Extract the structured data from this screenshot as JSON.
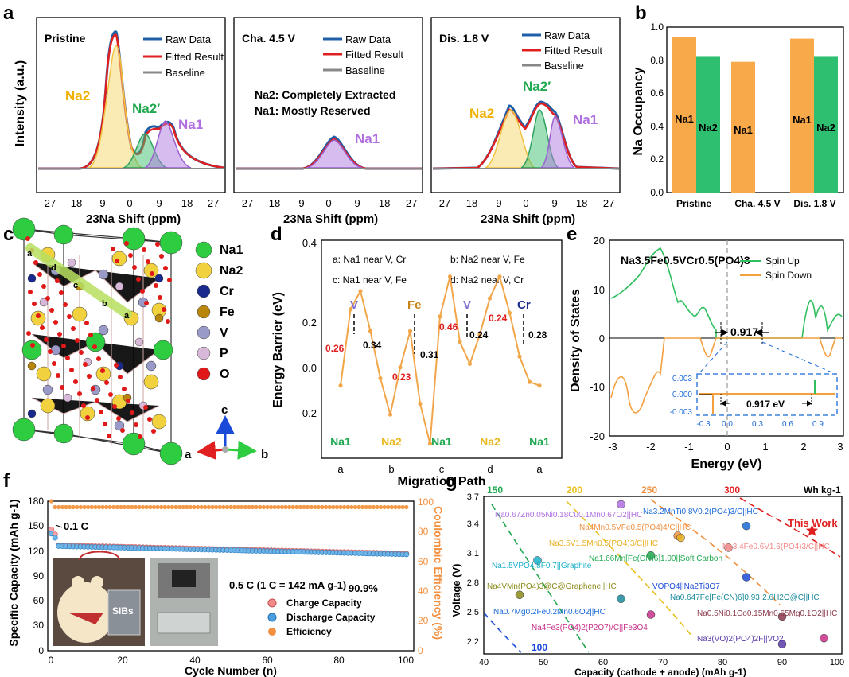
{
  "panel_labels": [
    "a",
    "b",
    "c",
    "d",
    "e",
    "f",
    "g"
  ],
  "chart_data": [
    {
      "panel": "a",
      "type": "line",
      "ylabel": "Intensity (a.u.)",
      "xlabel": "23Na Shift (ppm)",
      "xticks": [
        "27",
        "18",
        "9",
        "0",
        "-9",
        "-18",
        "-27"
      ],
      "legend": [
        "Raw Data",
        "Fitted Result",
        "Baseline"
      ],
      "subpanels": [
        {
          "title": "Pristine",
          "annotations": [
            "Na2",
            "Na2′",
            "Na1"
          ]
        },
        {
          "title": "Cha. 4.5 V",
          "annotations": [
            "Na2: Completely Extracted",
            "Na1: Mostly Reserved",
            "Na1"
          ]
        },
        {
          "title": "Dis. 1.8 V",
          "annotations": [
            "Na2",
            "Na2′",
            "Na1"
          ]
        }
      ]
    },
    {
      "panel": "b",
      "type": "bar",
      "ylabel": "Na Occupancy",
      "ylim": [
        0,
        1.0
      ],
      "yticks": [
        "0.0",
        "0.2",
        "0.4",
        "0.6",
        "0.8",
        "1.0"
      ],
      "categories": [
        "Pristine",
        "Cha. 4.5 V",
        "Dis. 1.8 V"
      ],
      "series": [
        {
          "name": "Na1",
          "values": [
            0.94,
            0.79,
            0.93
          ],
          "color": "#f8a94a"
        },
        {
          "name": "Na2",
          "values": [
            0.82,
            0,
            0.82
          ],
          "color": "#2fbf71"
        }
      ]
    },
    {
      "panel": "c",
      "type": "legend",
      "legend": [
        {
          "label": "Na1",
          "color": "#2ecc40"
        },
        {
          "label": "Na2",
          "color": "#f2d13e"
        },
        {
          "label": "Cr",
          "color": "#1a2a8c"
        },
        {
          "label": "Fe",
          "color": "#b8860b"
        },
        {
          "label": "V",
          "color": "#9a9ac8"
        },
        {
          "label": "P",
          "color": "#d8b8d8"
        },
        {
          "label": "O",
          "color": "#e01818"
        }
      ],
      "path_labels": [
        "a",
        "d",
        "c",
        "b",
        "a"
      ],
      "axes": [
        "a",
        "b",
        "c"
      ]
    },
    {
      "panel": "d",
      "type": "line",
      "ylabel": "Energy Barrier (eV)",
      "xlabel": "Migration Path",
      "ylim": [
        -0.2,
        0.4
      ],
      "yticks": [
        "-0.2",
        "0.0",
        "0.2",
        "0.4"
      ],
      "xticks": [
        "a",
        "b",
        "c",
        "d",
        "a"
      ],
      "legend": [
        "a: Na1 near V, Cr",
        "b: Na2 near V, Fe",
        "c: Na1 near V, Fe",
        "d: Na2 near V, Cr"
      ],
      "sites": [
        "Na1",
        "Na2",
        "Na1",
        "Na2",
        "Na1"
      ],
      "peaks": [
        "V",
        "Fe",
        "V",
        "Cr"
      ],
      "barriers": [
        "0.26",
        "0.34",
        "0.23",
        "0.31",
        "0.46",
        "0.24",
        "0.24",
        "0.28"
      ],
      "x": [
        0,
        0.5,
        1,
        1.5,
        2,
        2.5,
        3,
        3.5,
        4,
        4.5,
        5,
        5.5,
        6,
        6.5,
        7,
        7.5,
        8,
        8.5,
        9,
        9.5,
        10
      ],
      "y": [
        0.0,
        0.21,
        0.26,
        0.15,
        0.02,
        -0.08,
        0.05,
        0.15,
        -0.05,
        -0.16,
        0.19,
        0.3,
        0.12,
        0.06,
        0.14,
        0.24,
        0.3,
        0.2,
        0.08,
        0.01,
        0.0
      ]
    },
    {
      "panel": "e",
      "type": "line",
      "title": "Na3.5Fe0.5VCr0.5(PO4)3",
      "ylabel": "Density of States",
      "xlabel": "Energy (eV)",
      "ylim": [
        -20,
        20
      ],
      "xlim": [
        -3,
        3
      ],
      "yticks": [
        "-20",
        "-10",
        "0",
        "10",
        "20"
      ],
      "xticks": [
        "-3",
        "-2",
        "-1",
        "0",
        "1",
        "2",
        "3"
      ],
      "legend": [
        "Spin Up",
        "Spin Down"
      ],
      "gap": "0.917",
      "inset": {
        "yticks": [
          "0.003",
          "0.000",
          "-0.003"
        ],
        "xticks": [
          "-0.3",
          "0.0",
          "0.3",
          "0.6",
          "0.9"
        ],
        "gap": "0.917 eV"
      }
    },
    {
      "panel": "f",
      "type": "scatter",
      "ylabel": "Specific Capacity (mAh g-1)",
      "y2label": "Coulombic Efficiency (%)",
      "xlabel": "Cycle Number (n)",
      "xlim": [
        0,
        100
      ],
      "ylim": [
        0,
        180
      ],
      "xticks": [
        "0",
        "20",
        "40",
        "60",
        "80",
        "100"
      ],
      "yticks": [
        "0",
        "30",
        "60",
        "90",
        "120",
        "150",
        "180"
      ],
      "y2ticks": [
        "0",
        "20",
        "40",
        "60",
        "80",
        "100"
      ],
      "annotations": [
        "0.1 C",
        "0.5 C (1 C = 142 mA g-1)",
        "90.9%",
        "SIBs"
      ],
      "legend": [
        "Charge Capacity",
        "Discharge Capacity",
        "Efficiency"
      ],
      "series": [
        {
          "name": "Charge Capacity",
          "start": [
            146,
            140
          ],
          "level_start": 127,
          "level_end": 117
        },
        {
          "name": "Discharge Capacity",
          "start": [
            141,
            136
          ],
          "level_start": 126,
          "level_end": 116
        },
        {
          "name": "Efficiency",
          "level": 96,
          "first": 100
        }
      ]
    },
    {
      "panel": "g",
      "type": "scatter",
      "ylabel": "Voltage (V)",
      "xlabel": "Capacity (cathode + anode) (mAh g-1)",
      "xlim": [
        40,
        100
      ],
      "ylim": [
        2.1,
        3.7
      ],
      "xticks": [
        "40",
        "50",
        "60",
        "70",
        "80",
        "90",
        "100"
      ],
      "yticks": [
        "2.2",
        "2.5",
        "2.8",
        "3.1",
        "3.4",
        "3.7"
      ],
      "top_ticks": [
        "150",
        "200",
        "250",
        "300"
      ],
      "energy_unit": "Wh kg-1",
      "bottom_label": "100",
      "this_work": "This Work",
      "points": [
        {
          "label": "Na0.67Zn0.05Ni0.18Cu0.1Mn0.67O2||HC",
          "x": 63,
          "y": 3.62
        },
        {
          "label": "Na3.2MnTi0.8V0.2(PO4)3/C||HC",
          "x": 84,
          "y": 3.4
        },
        {
          "label": "Na4Mn0.5VFe0.5(PO4)4/C||HC",
          "x": 72.5,
          "y": 3.3
        },
        {
          "label": "Na3.5V1.5Mn0.5(PO4)3/C||HC",
          "x": 73,
          "y": 3.28
        },
        {
          "label": "Na3.4Fe0.6V1.6(PO4)3/C||HC",
          "x": 81,
          "y": 3.18
        },
        {
          "label": "Na1.66Mn[Fe(CN)6]1.00||Soft Carbon",
          "x": 68,
          "y": 3.1
        },
        {
          "label": "Na1.5VPO4.8F0.7||Graphite",
          "x": 49,
          "y": 3.05
        },
        {
          "label": "VOPO4||Na2Ti3O7",
          "x": 84,
          "y": 2.88
        },
        {
          "label": "Na4VMn(PO4)3@C@Graphene||HC",
          "x": 46,
          "y": 2.7
        },
        {
          "label": "Na0.647Fe[Fe(CN)6]0.93·2.6H2O@C||HC",
          "x": 63,
          "y": 2.66
        },
        {
          "label": "Na0.7Mg0.2Fe0.2Mn0.6O2||HC",
          "x": 68,
          "y": 2.5
        },
        {
          "label": "Na0.5Ni0.1Co0.15Mn0.65Mg0.1O2||HC",
          "x": 90,
          "y": 2.48
        },
        {
          "label": "Na4Fe3(PO4)2(P2O7)/C||Fe3O4",
          "x": 97,
          "y": 2.26
        },
        {
          "label": "Na3(VO)2(PO4)2F||VO2",
          "x": 90,
          "y": 2.2
        },
        {
          "label": "This Work",
          "x": 95,
          "y": 3.35
        }
      ]
    }
  ]
}
